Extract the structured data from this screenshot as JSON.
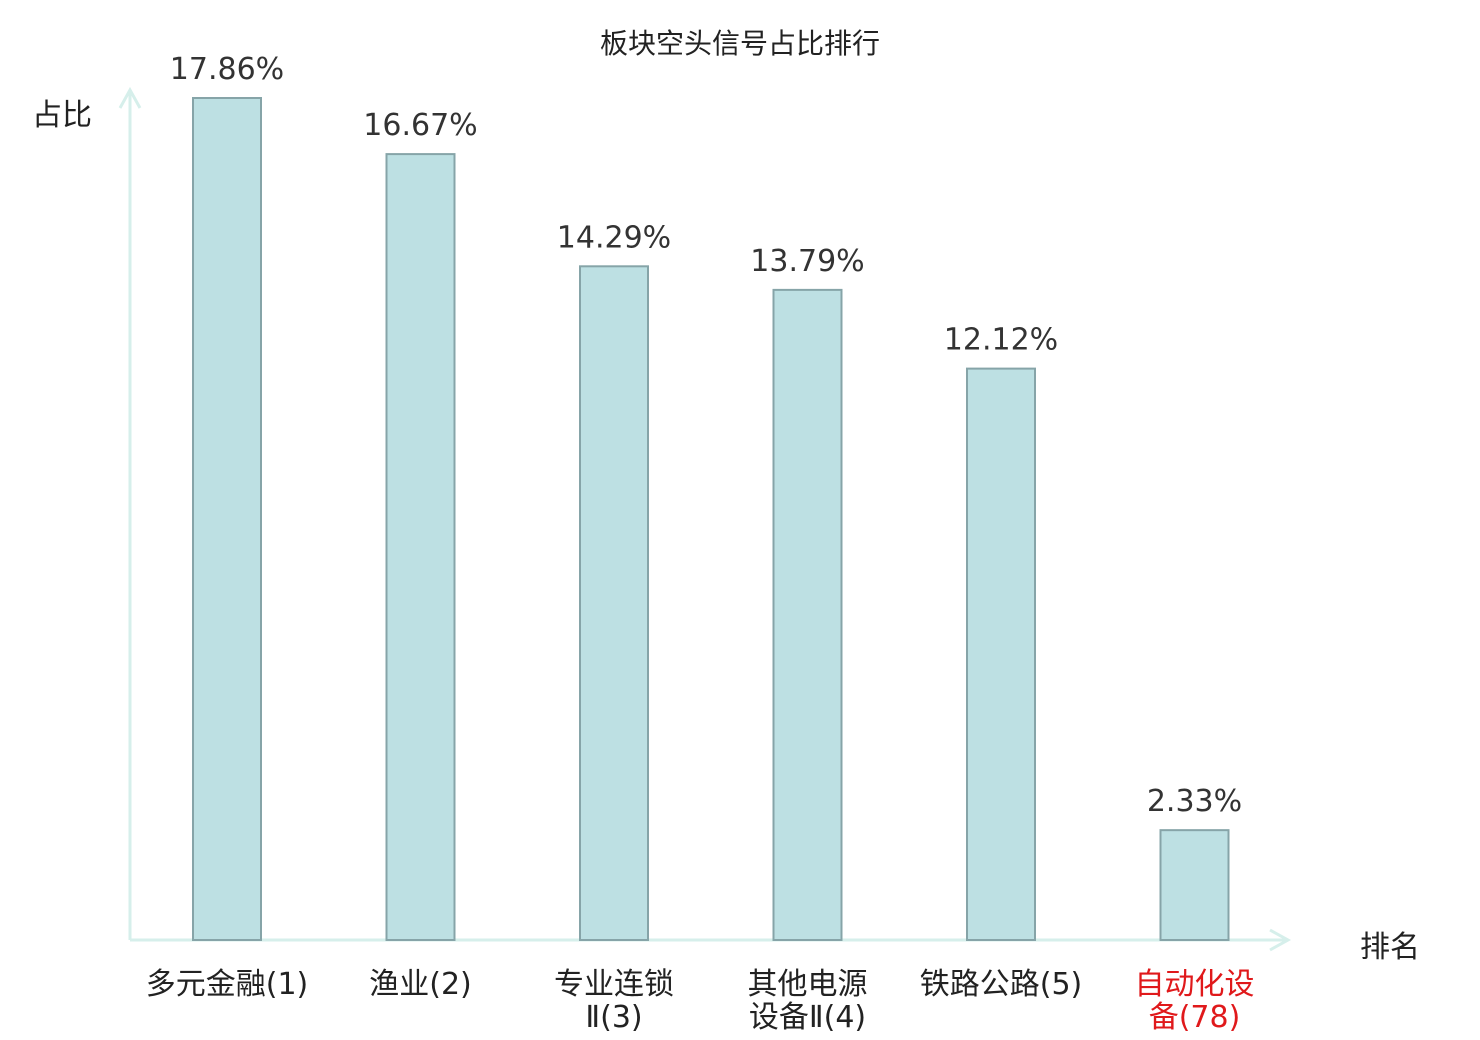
{
  "chart_data": {
    "type": "bar",
    "title": "板块空头信号占比排行",
    "ylabel": "占比",
    "xlabel": "排名",
    "categories": [
      [
        "多元金融(1)"
      ],
      [
        "渔业(2)"
      ],
      [
        "专业连锁",
        "Ⅱ(3)"
      ],
      [
        "其他电源",
        "设备Ⅱ(4)"
      ],
      [
        "铁路公路(5)"
      ],
      [
        "自动化设",
        "备(78)"
      ]
    ],
    "values": [
      17.86,
      16.67,
      14.29,
      13.79,
      12.12,
      2.33
    ],
    "value_labels": [
      "17.86%",
      "16.67%",
      "14.29%",
      "13.79%",
      "12.12%",
      "2.33%"
    ],
    "highlight_index": 5,
    "ylim": [
      0,
      17.86
    ],
    "grid": false
  },
  "colors": {
    "bar_fill": "#bde0e3",
    "bar_stroke": "#86a4a8",
    "axis": "#d6efeb",
    "text": "#222222",
    "value_label": "#333333",
    "highlight": "#e0191b"
  }
}
